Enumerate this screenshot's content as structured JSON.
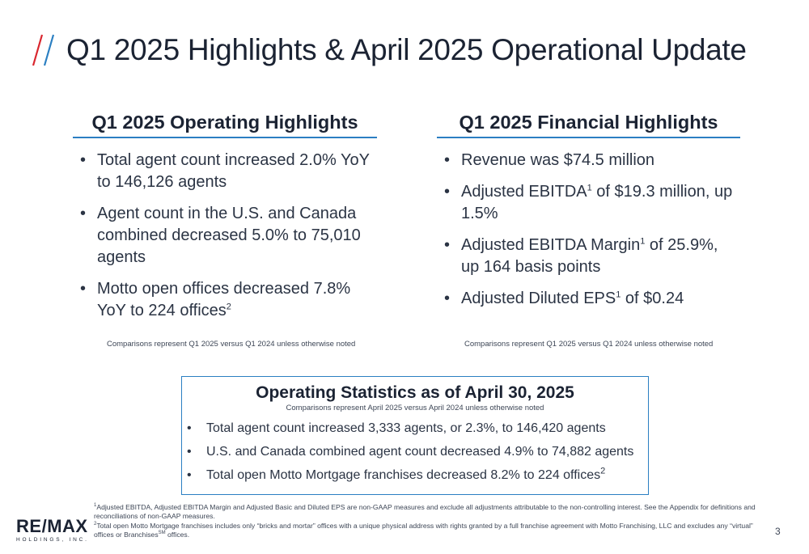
{
  "header": {
    "title": "Q1 2025 Highlights & April 2025 Operational Update",
    "accent_colors": {
      "red": "#d9262e",
      "blue": "#2b7fc2"
    }
  },
  "operating": {
    "heading": "Q1 2025 Operating Highlights",
    "items": [
      {
        "text": "Total agent count increased 2.0% YoY to 146,126 agents"
      },
      {
        "text": "Agent count in the U.S. and Canada combined decreased 5.0% to 75,010 agents"
      },
      {
        "text": "Motto open offices decreased 7.8% YoY to 224 offices",
        "sup": "2"
      }
    ],
    "note": "Comparisons represent Q1  2025 versus Q1 2024 unless otherwise noted"
  },
  "financial": {
    "heading": "Q1 2025 Financial Highlights",
    "items": [
      {
        "a": "Revenue was $74.5 million"
      },
      {
        "a": "Adjusted EBITDA",
        "sup": "1",
        "b": " of $19.3 million, up 1.5%"
      },
      {
        "a": "Adjusted EBITDA Margin",
        "sup": "1",
        "b": " of 25.9%, up 164 basis points"
      },
      {
        "a": "Adjusted Diluted EPS",
        "sup": "1",
        "b": " of $0.24"
      }
    ],
    "note": "Comparisons represent Q1  2025 versus Q1 2024 unless otherwise noted"
  },
  "stats": {
    "heading": "Operating Statistics as of April 30, 2025",
    "sub": "Comparisons represent April  2025 versus April 2024 unless otherwise noted",
    "items": [
      {
        "text": "Total agent count increased 3,333 agents, or 2.3%, to 146,420 agents"
      },
      {
        "text": "U.S. and Canada combined agent count decreased 4.9% to 74,882 agents"
      },
      {
        "text": "Total open Motto Mortgage franchises decreased 8.2% to 224 offices",
        "sup": "2"
      }
    ]
  },
  "footnotes": {
    "f1_mark": "1",
    "f1_text": "Adjusted EBITDA, Adjusted EBITDA Margin and Adjusted Basic and Diluted EPS are non-GAAP measures and exclude all adjustments attributable to the non-controlling interest.  See the Appendix for definitions and reconciliations of non-GAAP measures.",
    "f2_mark": "2",
    "f2_text_a": "Total open Motto Mortgage franchises includes only “bricks and mortar” offices with a unique physical address with rights granted by a full franchise agreement with Motto Franchising, LLC and excludes any “virtual” offices or Branchises",
    "f2_sm": "SM",
    "f2_text_b": " offices."
  },
  "logo": {
    "mark_a": "RE",
    "mark_slash": "/",
    "mark_b": "MAX",
    "sub": "HOLDINGS, INC."
  },
  "page_number": "3"
}
